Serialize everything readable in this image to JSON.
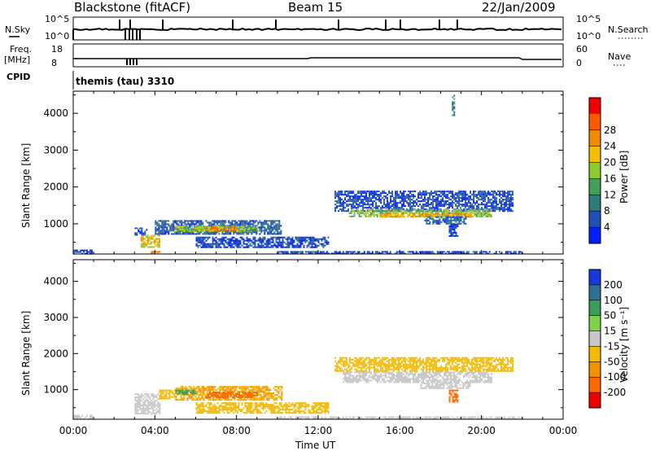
{
  "header": {
    "title": "Blackstone (fitACF)",
    "beam": "Beam 15",
    "date": "22/Jan/2009"
  },
  "params": {
    "nsky_label": "N.Sky",
    "nsky_ticks": [
      "10^5",
      "10^0"
    ],
    "nsearch_label": "N.Search",
    "nsearch_ticks": [
      "10^5",
      "10^0"
    ],
    "freq_label_1": "Freq.",
    "freq_label_2": "[MHz]",
    "freq_ticks": [
      "18",
      "8"
    ],
    "nave_label": "Nave",
    "nave_ticks": [
      "60",
      "0"
    ],
    "cpid_label": "CPID",
    "cpid_value": "themis (tau) 3310"
  },
  "colors": {
    "power_scale": [
      "#0020ff",
      "#2050b8",
      "#2f7a7a",
      "#41a05a",
      "#8ecb2c",
      "#f3c000",
      "#f08a00",
      "#ff5a00",
      "#f00000"
    ],
    "velocity_scale": [
      "#1838d8",
      "#2f6f8f",
      "#3a9e5a",
      "#7fd04a",
      "#c8c8c8",
      "#f6ba00",
      "#f39200",
      "#ff6a00",
      "#f00000"
    ],
    "velocity_gray": "#c8c8c8"
  },
  "chart_data": [
    {
      "type": "heatmap",
      "panel": "power",
      "x_unit": "hours UT",
      "xlim": [
        0,
        24
      ],
      "ylim": [
        180,
        4600
      ],
      "ylabel": "Slant Range [km]",
      "ytick_labels": [
        "1000",
        "2000",
        "3000",
        "4000"
      ],
      "colorbar_label": "Power [dB]",
      "colorbar_ticks": [
        "4",
        "8",
        "12",
        "16",
        "20",
        "24",
        "28"
      ],
      "colorbar_range": [
        0,
        30
      ],
      "bands": [
        {
          "t0": 0.0,
          "t1": 0.9,
          "r0": 180,
          "r1": 300,
          "level": 4
        },
        {
          "t0": 3.0,
          "t1": 3.6,
          "r0": 700,
          "r1": 900,
          "level": 4
        },
        {
          "t0": 3.3,
          "t1": 4.2,
          "r0": 350,
          "r1": 700,
          "level": 18
        },
        {
          "t0": 3.8,
          "t1": 4.3,
          "r0": 180,
          "r1": 260,
          "level": 22
        },
        {
          "t0": 4.0,
          "t1": 10.2,
          "r0": 720,
          "r1": 1100,
          "level": 6
        },
        {
          "t0": 5.0,
          "t1": 9.0,
          "r0": 780,
          "r1": 950,
          "level": 14
        },
        {
          "t0": 6.5,
          "t1": 8.0,
          "r0": 800,
          "r1": 920,
          "level": 22
        },
        {
          "t0": 6.0,
          "t1": 12.5,
          "r0": 350,
          "r1": 650,
          "level": 4
        },
        {
          "t0": 12.8,
          "t1": 21.5,
          "r0": 1350,
          "r1": 1900,
          "level": 4
        },
        {
          "t0": 13.5,
          "t1": 20.5,
          "r0": 1200,
          "r1": 1400,
          "level": 14
        },
        {
          "t0": 15.0,
          "t1": 19.5,
          "r0": 1180,
          "r1": 1300,
          "level": 20
        },
        {
          "t0": 17.2,
          "t1": 19.2,
          "r0": 1000,
          "r1": 1200,
          "level": 6
        },
        {
          "t0": 18.4,
          "t1": 18.8,
          "r0": 650,
          "r1": 1000,
          "level": 4
        },
        {
          "t0": 10.0,
          "t1": 22.0,
          "r0": 180,
          "r1": 260,
          "level": 4
        },
        {
          "t0": 18.55,
          "t1": 18.65,
          "r0": 3900,
          "r1": 4500,
          "level": 8
        }
      ]
    },
    {
      "type": "heatmap",
      "panel": "velocity",
      "x_unit": "hours UT",
      "xlim": [
        0,
        24
      ],
      "ylim": [
        180,
        4600
      ],
      "ylabel": "Slant Range [km]",
      "xlabel": "Time UT",
      "xtick_labels": [
        "00:00",
        "04:00",
        "08:00",
        "12:00",
        "16:00",
        "20:00",
        "00:00"
      ],
      "ytick_labels": [
        "1000",
        "2000",
        "3000",
        "4000"
      ],
      "colorbar_label": "Velocity [m s⁻¹]",
      "colorbar_ticks": [
        "200",
        "100",
        "50",
        "15",
        "-15",
        "-50",
        "-100",
        "-200"
      ],
      "bands": [
        {
          "t0": 0.0,
          "t1": 0.9,
          "r0": 180,
          "r1": 300,
          "level": 0
        },
        {
          "t0": 3.0,
          "t1": 4.2,
          "r0": 350,
          "r1": 900,
          "level": 0
        },
        {
          "t0": 4.2,
          "t1": 5.0,
          "r0": 750,
          "r1": 1000,
          "level": -25
        },
        {
          "t0": 5.0,
          "t1": 10.2,
          "r0": 720,
          "r1": 1100,
          "level": -30
        },
        {
          "t0": 6.5,
          "t1": 9.0,
          "r0": 780,
          "r1": 950,
          "level": -60
        },
        {
          "t0": 5.0,
          "t1": 6.0,
          "r0": 900,
          "r1": 1000,
          "level": 40
        },
        {
          "t0": 6.0,
          "t1": 12.5,
          "r0": 350,
          "r1": 650,
          "level": -25
        },
        {
          "t0": 12.8,
          "t1": 21.5,
          "r0": 1500,
          "r1": 1900,
          "level": -20
        },
        {
          "t0": 13.2,
          "t1": 20.5,
          "r0": 1200,
          "r1": 1500,
          "level": 0
        },
        {
          "t0": 17.0,
          "t1": 19.5,
          "r0": 1050,
          "r1": 1200,
          "level": 0
        },
        {
          "t0": 18.4,
          "t1": 18.8,
          "r0": 650,
          "r1": 1000,
          "level": -60
        },
        {
          "t0": 10.0,
          "t1": 22.0,
          "r0": 180,
          "r1": 260,
          "level": -10
        }
      ]
    }
  ]
}
